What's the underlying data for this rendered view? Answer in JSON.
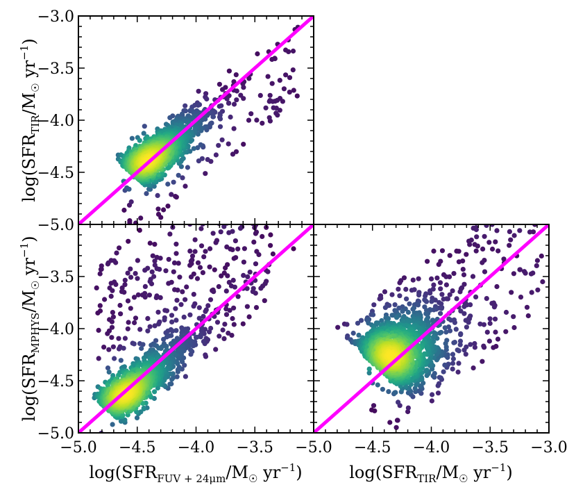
{
  "chart_data": [
    {
      "id": "top-left",
      "type": "scatter",
      "xlabel": "",
      "ylabel": {
        "base": "log(SFR",
        "sub": "TIR",
        "unit": "/M",
        "sun": "☉",
        "tail": " yr",
        "exp": "−1",
        "close": ")"
      },
      "xlim": [
        -5.0,
        -3.0
      ],
      "ylim": [
        -5.0,
        -3.0
      ],
      "yticks": [
        "−5.0",
        "−4.5",
        "−4.0",
        "−3.5",
        "−3.0"
      ],
      "xticks": [],
      "reference_line": {
        "label": "one-to-one",
        "color": "#ff00ff",
        "x": [
          -5.0,
          -3.0
        ],
        "y": [
          -5.0,
          -3.0
        ]
      },
      "density_colormap": "viridis",
      "point_model": {
        "n": 1400,
        "outliers": 130,
        "core_x": -4.52,
        "core_y": -4.52,
        "spread_major": 0.34,
        "spread_minor": 0.075,
        "offset": -0.02,
        "seed": 11
      }
    },
    {
      "id": "bottom-left",
      "type": "scatter",
      "xlabel": {
        "base": "log(SFR",
        "sub": "FUV + 24μm",
        "unit": "/M",
        "sun": "☉",
        "tail": " yr",
        "exp": "−1",
        "close": ")"
      },
      "ylabel": {
        "base": "log(SFR",
        "sub": "MPHYS",
        "unit": "/M",
        "sun": "☉",
        "tail": " yr",
        "exp": "−1",
        "close": ")"
      },
      "xlim": [
        -5.0,
        -3.0
      ],
      "ylim": [
        -5.0,
        -3.0
      ],
      "xticks": [
        "−5.0",
        "−4.5",
        "−4.0",
        "−3.5"
      ],
      "yticks": [
        "−5.0",
        "−4.5",
        "−4.0",
        "−3.5"
      ],
      "reference_line": {
        "label": "one-to-one",
        "color": "#ff00ff",
        "x": [
          -5.0,
          -3.0
        ],
        "y": [
          -5.0,
          -3.0
        ]
      },
      "density_colormap": "viridis",
      "point_model": {
        "n": 1500,
        "outliers": 420,
        "core_x": -4.75,
        "core_y": -4.78,
        "spread_major": 0.38,
        "spread_minor": 0.07,
        "offset": 0.0,
        "seed": 23
      }
    },
    {
      "id": "bottom-right",
      "type": "scatter",
      "xlabel": {
        "base": "log(SFR",
        "sub": "TIR",
        "unit": "/M",
        "sun": "☉",
        "tail": " yr",
        "exp": "−1",
        "close": ")"
      },
      "ylabel": "",
      "xlim": [
        -5.0,
        -3.0
      ],
      "ylim": [
        -5.0,
        -3.0
      ],
      "xticks": [
        "−5.0",
        "−4.5",
        "−4.0",
        "−3.5",
        "−3.0"
      ],
      "yticks": [],
      "reference_line": {
        "label": "one-to-one",
        "color": "#ff00ff",
        "x": [
          -5.0,
          -3.0
        ],
        "y": [
          -5.0,
          -3.0
        ]
      },
      "density_colormap": "viridis",
      "point_model": {
        "n": 1300,
        "outliers": 260,
        "core_x": -4.45,
        "core_y": -4.38,
        "spread_major": 0.3,
        "spread_minor": 0.16,
        "offset": 0.0,
        "seed": 37
      }
    }
  ]
}
